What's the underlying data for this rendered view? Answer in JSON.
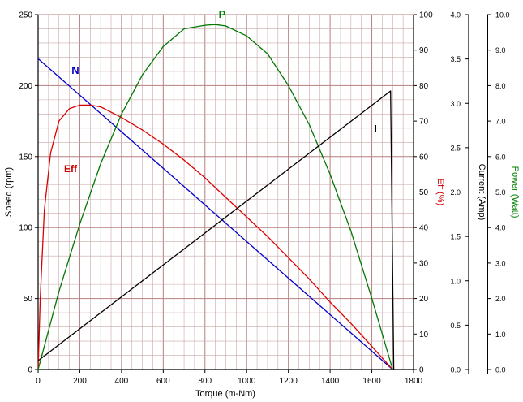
{
  "chart_data": {
    "type": "line",
    "xlabel": "Torque (m-Nm)",
    "xlim": [
      0,
      1800
    ],
    "x_ticks": [
      "0",
      "200",
      "400",
      "600",
      "800",
      "1000",
      "1200",
      "1400",
      "1600",
      "1800"
    ],
    "axes": {
      "speed": {
        "label": "Speed (rpm)",
        "range": [
          0,
          250
        ],
        "ticks": [
          "0",
          "50",
          "100",
          "150",
          "200",
          "250"
        ]
      },
      "eff": {
        "label": "Eff (%)",
        "range": [
          0,
          100
        ],
        "ticks": [
          "0",
          "10",
          "20",
          "30",
          "40",
          "50",
          "60",
          "70",
          "80",
          "90",
          "100"
        ],
        "color": "#cc0000"
      },
      "current": {
        "label": "Current (Amp)",
        "range": [
          0,
          4
        ],
        "ticks": [
          "0.0",
          "0.5",
          "1.0",
          "1.5",
          "2.0",
          "2.5",
          "3.0",
          "3.5",
          "4.0"
        ]
      },
      "power": {
        "label": "Power (Watt)",
        "range": [
          0,
          10
        ],
        "ticks": [
          "0.0",
          "1.0",
          "2.0",
          "3.0",
          "4.0",
          "5.0",
          "6.0",
          "7.0",
          "8.0",
          "9.0",
          "10.0"
        ],
        "color": "#008000"
      }
    },
    "series": [
      {
        "name": "N",
        "axis": "speed",
        "color": "#0000cc",
        "x": [
          0,
          1700
        ],
        "y": [
          219,
          0
        ]
      },
      {
        "name": "Eff",
        "axis": "eff",
        "color": "#dd0000",
        "x": [
          0,
          10,
          30,
          60,
          100,
          150,
          200,
          250,
          300,
          400,
          500,
          600,
          700,
          800,
          900,
          1000,
          1100,
          1200,
          1300,
          1400,
          1500,
          1600,
          1700
        ],
        "y": [
          0,
          20,
          45,
          61,
          70,
          73.5,
          74.5,
          74.5,
          74,
          71,
          67.5,
          63.5,
          59,
          54,
          48.5,
          43,
          37.5,
          31.5,
          25.5,
          19,
          13,
          6.5,
          0
        ]
      },
      {
        "name": "P",
        "axis": "power",
        "color": "#007700",
        "x": [
          0,
          100,
          200,
          300,
          400,
          500,
          600,
          700,
          800,
          850,
          900,
          1000,
          1100,
          1200,
          1300,
          1400,
          1500,
          1600,
          1700
        ],
        "y": [
          0,
          2.2,
          4.1,
          5.8,
          7.2,
          8.3,
          9.1,
          9.6,
          9.7,
          9.72,
          9.68,
          9.4,
          8.9,
          8.0,
          6.9,
          5.5,
          3.9,
          2.0,
          0
        ]
      },
      {
        "name": "I",
        "axis": "current",
        "color": "#000000",
        "x": [
          0,
          1690,
          1705
        ],
        "y": [
          0.1,
          3.14,
          0
        ]
      }
    ],
    "annotations": [
      {
        "text": "N",
        "color": "#0000cc"
      },
      {
        "text": "Eff",
        "color": "#cc0000"
      },
      {
        "text": "P",
        "color": "#008000"
      },
      {
        "text": "I",
        "color": "#000000"
      }
    ],
    "grid": true
  }
}
